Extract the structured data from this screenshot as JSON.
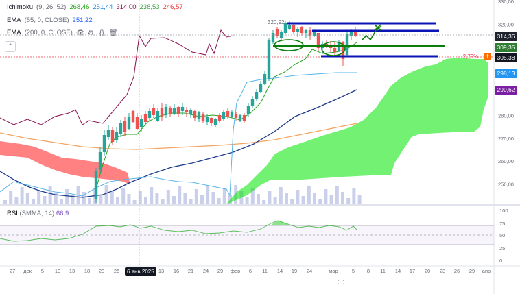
{
  "legends": {
    "ichimoku": {
      "name": "Ichimoku",
      "params": "(9, 26, 52)",
      "values": [
        "268,46",
        "251,44",
        "314,00",
        "238,53",
        "246,57"
      ],
      "colors": [
        "#26a41a",
        "#1e88e5",
        "#880e4f",
        "#a5d6a7",
        "#ef9a9a"
      ]
    },
    "ema1": {
      "name": "EMA",
      "params": "(55, 0, CLOSE)",
      "value": "251,22",
      "color": "#2962ff"
    },
    "ema2": {
      "name": "EMA",
      "params": "(200, 0, CLOSE)"
    },
    "rsi": {
      "name": "RSI",
      "params": "(SMMA, 14)",
      "value": "66,9",
      "color": "#7e57c2"
    }
  },
  "price_axis": {
    "ticks": [
      "330,00",
      "320,00",
      "310,00",
      "300,00",
      "290,00",
      "280,00",
      "270,00",
      "260,00",
      "250,00"
    ]
  },
  "price_labels": [
    {
      "text": "314,36",
      "bg": "#1e222d"
    },
    {
      "text": "309,35",
      "bg": "#2e7d32"
    },
    {
      "text": "305,38",
      "bg": "#131722"
    },
    {
      "text": "298,13",
      "bg": "#2196f3"
    },
    {
      "text": "290,62",
      "bg": "#7b1fa2"
    }
  ],
  "annotations": {
    "high": "320,92",
    "pct": "-2,79%",
    "plus": "+"
  },
  "rsi_axis": {
    "ticks": [
      "100",
      "75",
      "50",
      "25",
      "0"
    ]
  },
  "x_axis": {
    "ticks": [
      "27",
      "дек",
      "5",
      "10",
      "13",
      "18",
      "23",
      "26",
      "6 янв 2025",
      "13",
      "16",
      "21",
      "24",
      "29",
      "фев",
      "6",
      "11",
      "14",
      "19",
      "24",
      "мар",
      "5",
      "8",
      "11",
      "14",
      "17",
      "20",
      "23",
      "26",
      "29",
      "апр"
    ]
  },
  "icons": [
    "eye-icon",
    "settings-icon",
    "trash-icon",
    "collapse-icon",
    "plus-icon",
    "pane-handle-icon"
  ],
  "colors": {
    "up": "#26a69a",
    "down": "#ef5350",
    "kumo_bull": "#00e600",
    "kumo_bear": "#ff1a1a",
    "kijun": "#880e4f",
    "tenkan": "#26a41a",
    "chikou": "#56b4e9",
    "ema55": "#1e3a8a",
    "ema200": "#f4a460"
  }
}
